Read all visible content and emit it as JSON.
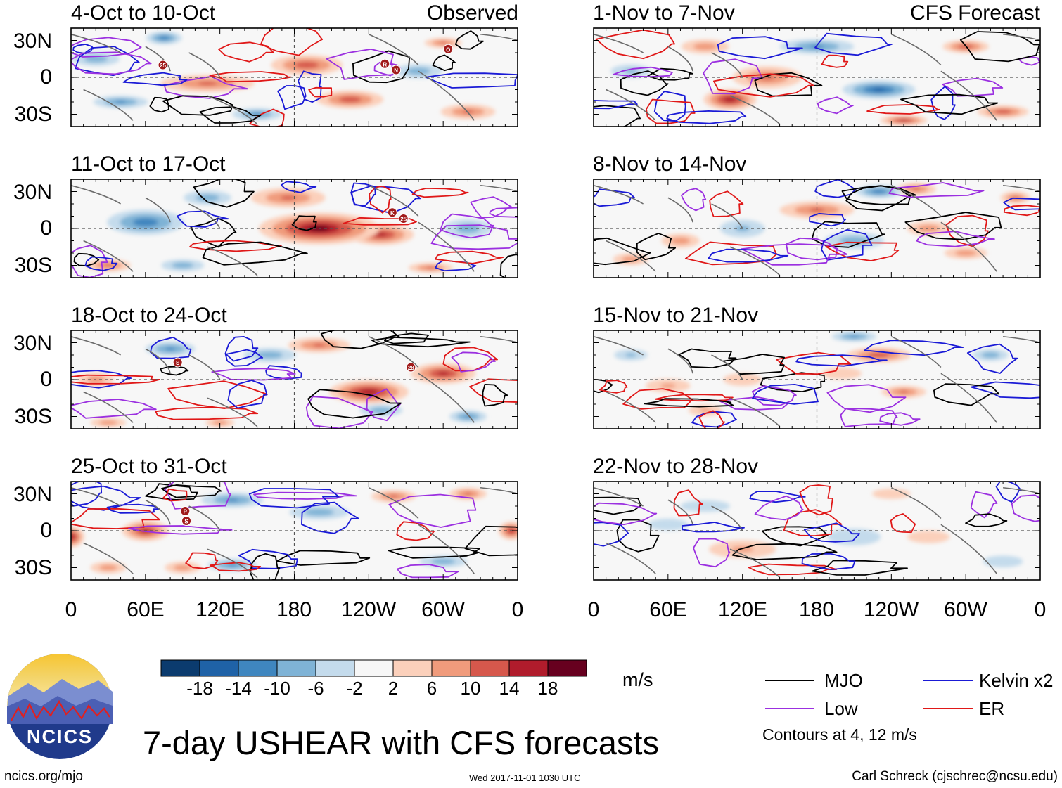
{
  "title": "7-day USHEAR with CFS forecasts",
  "observed_label": "Observed",
  "forecast_label": "CFS Forecast",
  "observed_panels": [
    "4-Oct to 10-Oct",
    "11-Oct to 17-Oct",
    "18-Oct to 24-Oct",
    "25-Oct to 31-Oct"
  ],
  "forecast_panels": [
    "1-Nov to 7-Nov",
    "8-Nov to 14-Nov",
    "15-Nov to 21-Nov",
    "22-Nov to 28-Nov"
  ],
  "lat_labels": [
    "30N",
    "0",
    "30S"
  ],
  "lon_labels": [
    "0",
    "60E",
    "120E",
    "180",
    "120W",
    "60W",
    "0"
  ],
  "colorbar": {
    "ticks": [
      "-18",
      "-14",
      "-10",
      "-6",
      "-2",
      "2",
      "6",
      "10",
      "14",
      "18"
    ],
    "colors": [
      "#0b3b6e",
      "#1f62a7",
      "#3f86bf",
      "#7fb3d6",
      "#c4dbec",
      "#f7f7f7",
      "#fbd0bb",
      "#f09b7c",
      "#d6584c",
      "#b01c2c",
      "#67001f"
    ],
    "unit": "m/s"
  },
  "legend": {
    "items": [
      {
        "label": "MJO",
        "color": "#000000"
      },
      {
        "label": "Kelvin x2",
        "color": "#1a1ad6"
      },
      {
        "label": "Low",
        "color": "#9b30e0"
      },
      {
        "label": "ER",
        "color": "#e01818"
      }
    ],
    "note": "Contours at 4, 12 m/s"
  },
  "logo_text": "NCICS",
  "footer": {
    "left": "ncics.org/mjo",
    "center": "Wed 2017-11-01 1030 UTC",
    "right": "Carl Schreck (cjschrec@ncsu.edu)"
  },
  "storm_markers": [
    {
      "panel": 0,
      "letter": "O"
    },
    {
      "panel": 0,
      "letter": "R"
    },
    {
      "panel": 0,
      "letter": "N"
    },
    {
      "panel": 0,
      "letter": "25"
    },
    {
      "panel": 1,
      "letter": "K"
    },
    {
      "panel": 1,
      "letter": "25"
    },
    {
      "panel": 2,
      "letter": "28"
    },
    {
      "panel": 2,
      "letter": "S"
    },
    {
      "panel": 3,
      "letter": "P"
    },
    {
      "panel": 3,
      "letter": "S"
    }
  ],
  "chart_data": {
    "type": "heatmap",
    "variable": "7-day mean zonal wind shear (USHEAR) anomaly",
    "unit": "m/s",
    "x_range": [
      0,
      360
    ],
    "y_range": [
      -40,
      40
    ],
    "contour_levels": [
      4,
      12
    ],
    "fields": [
      {
        "period": "4-Oct to 10-Oct",
        "kind": "Observed",
        "blobs": [
          [
            75,
            32,
            -12,
            14,
            5
          ],
          [
            110,
            -5,
            10,
            38,
            7
          ],
          [
            190,
            10,
            12,
            28,
            8
          ],
          [
            225,
            -18,
            12,
            26,
            7
          ],
          [
            320,
            -28,
            10,
            22,
            6
          ],
          [
            40,
            -20,
            -10,
            22,
            5
          ],
          [
            300,
            28,
            10,
            15,
            4
          ],
          [
            150,
            -30,
            -10,
            20,
            5
          ],
          [
            280,
            5,
            -8,
            20,
            6
          ],
          [
            20,
            15,
            -8,
            20,
            6
          ]
        ]
      },
      {
        "period": "1-Nov to 7-Nov",
        "kind": "CFS Forecast",
        "blobs": [
          [
            110,
            -18,
            16,
            20,
            8
          ],
          [
            140,
            0,
            10,
            28,
            9
          ],
          [
            230,
            -10,
            -14,
            28,
            7
          ],
          [
            250,
            -35,
            14,
            18,
            4
          ],
          [
            330,
            -28,
            12,
            20,
            5
          ],
          [
            180,
            25,
            -10,
            30,
            6
          ],
          [
            300,
            25,
            12,
            18,
            5
          ],
          [
            90,
            25,
            8,
            20,
            6
          ],
          [
            30,
            5,
            -6,
            18,
            6
          ]
        ]
      },
      {
        "period": "11-Oct to 17-Oct",
        "kind": "Observed",
        "blobs": [
          [
            200,
            0,
            18,
            45,
            12
          ],
          [
            175,
            25,
            10,
            30,
            8
          ],
          [
            250,
            -5,
            14,
            25,
            8
          ],
          [
            60,
            5,
            -12,
            30,
            10
          ],
          [
            110,
            25,
            -8,
            20,
            6
          ],
          [
            320,
            0,
            -8,
            20,
            8
          ],
          [
            30,
            -30,
            10,
            18,
            5
          ],
          [
            290,
            -32,
            10,
            18,
            4
          ],
          [
            90,
            -30,
            -8,
            18,
            5
          ]
        ]
      },
      {
        "period": "8-Nov to 14-Nov",
        "kind": "CFS Forecast",
        "blobs": [
          [
            180,
            15,
            10,
            30,
            7
          ],
          [
            230,
            30,
            -12,
            18,
            5
          ],
          [
            260,
            32,
            10,
            16,
            5
          ],
          [
            340,
            25,
            10,
            12,
            5
          ],
          [
            70,
            -10,
            8,
            16,
            6
          ],
          [
            270,
            0,
            8,
            18,
            6
          ],
          [
            30,
            -25,
            8,
            15,
            5
          ],
          [
            300,
            -20,
            8,
            18,
            5
          ],
          [
            120,
            0,
            -6,
            20,
            8
          ],
          [
            210,
            -10,
            -8,
            25,
            7
          ]
        ]
      },
      {
        "period": "18-Oct to 24-Oct",
        "kind": "Observed",
        "blobs": [
          [
            240,
            -10,
            16,
            30,
            9
          ],
          [
            300,
            5,
            14,
            25,
            8
          ],
          [
            200,
            28,
            10,
            25,
            6
          ],
          [
            80,
            25,
            -10,
            20,
            6
          ],
          [
            160,
            20,
            -8,
            22,
            6
          ],
          [
            250,
            -25,
            -8,
            18,
            5
          ],
          [
            320,
            -30,
            -10,
            15,
            5
          ],
          [
            20,
            0,
            8,
            15,
            6
          ],
          [
            30,
            -35,
            8,
            15,
            4
          ],
          [
            120,
            -35,
            8,
            12,
            4
          ]
        ]
      },
      {
        "period": "15-Nov to 21-Nov",
        "kind": "CFS Forecast",
        "blobs": [
          [
            230,
            20,
            12,
            25,
            6
          ],
          [
            210,
            35,
            -10,
            18,
            4
          ],
          [
            250,
            -10,
            10,
            18,
            5
          ],
          [
            60,
            -5,
            6,
            20,
            6
          ],
          [
            120,
            0,
            5,
            18,
            6
          ],
          [
            200,
            5,
            4,
            20,
            6
          ],
          [
            320,
            20,
            -8,
            15,
            5
          ],
          [
            90,
            -25,
            6,
            15,
            5
          ],
          [
            30,
            20,
            -6,
            15,
            5
          ]
        ]
      },
      {
        "period": "25-Oct to 31-Oct",
        "kind": "Observed",
        "blobs": [
          [
            60,
            0,
            14,
            18,
            8
          ],
          [
            0,
            -5,
            16,
            10,
            8
          ],
          [
            355,
            0,
            14,
            10,
            7
          ],
          [
            320,
            30,
            10,
            15,
            5
          ],
          [
            260,
            28,
            10,
            18,
            5
          ],
          [
            130,
            25,
            -10,
            25,
            6
          ],
          [
            200,
            15,
            -8,
            25,
            6
          ],
          [
            130,
            -28,
            -10,
            20,
            5
          ],
          [
            30,
            -30,
            8,
            15,
            5
          ],
          [
            90,
            -30,
            8,
            15,
            5
          ],
          [
            300,
            -25,
            -8,
            20,
            5
          ]
        ]
      },
      {
        "period": "22-Nov to 28-Nov",
        "kind": "CFS Forecast",
        "blobs": [
          [
            120,
            -15,
            6,
            30,
            8
          ],
          [
            210,
            -5,
            -5,
            25,
            8
          ],
          [
            270,
            -5,
            5,
            20,
            6
          ],
          [
            90,
            20,
            -4,
            25,
            6
          ],
          [
            330,
            -25,
            -4,
            20,
            6
          ],
          [
            240,
            30,
            5,
            18,
            5
          ],
          [
            60,
            5,
            -4,
            20,
            6
          ]
        ]
      }
    ]
  }
}
